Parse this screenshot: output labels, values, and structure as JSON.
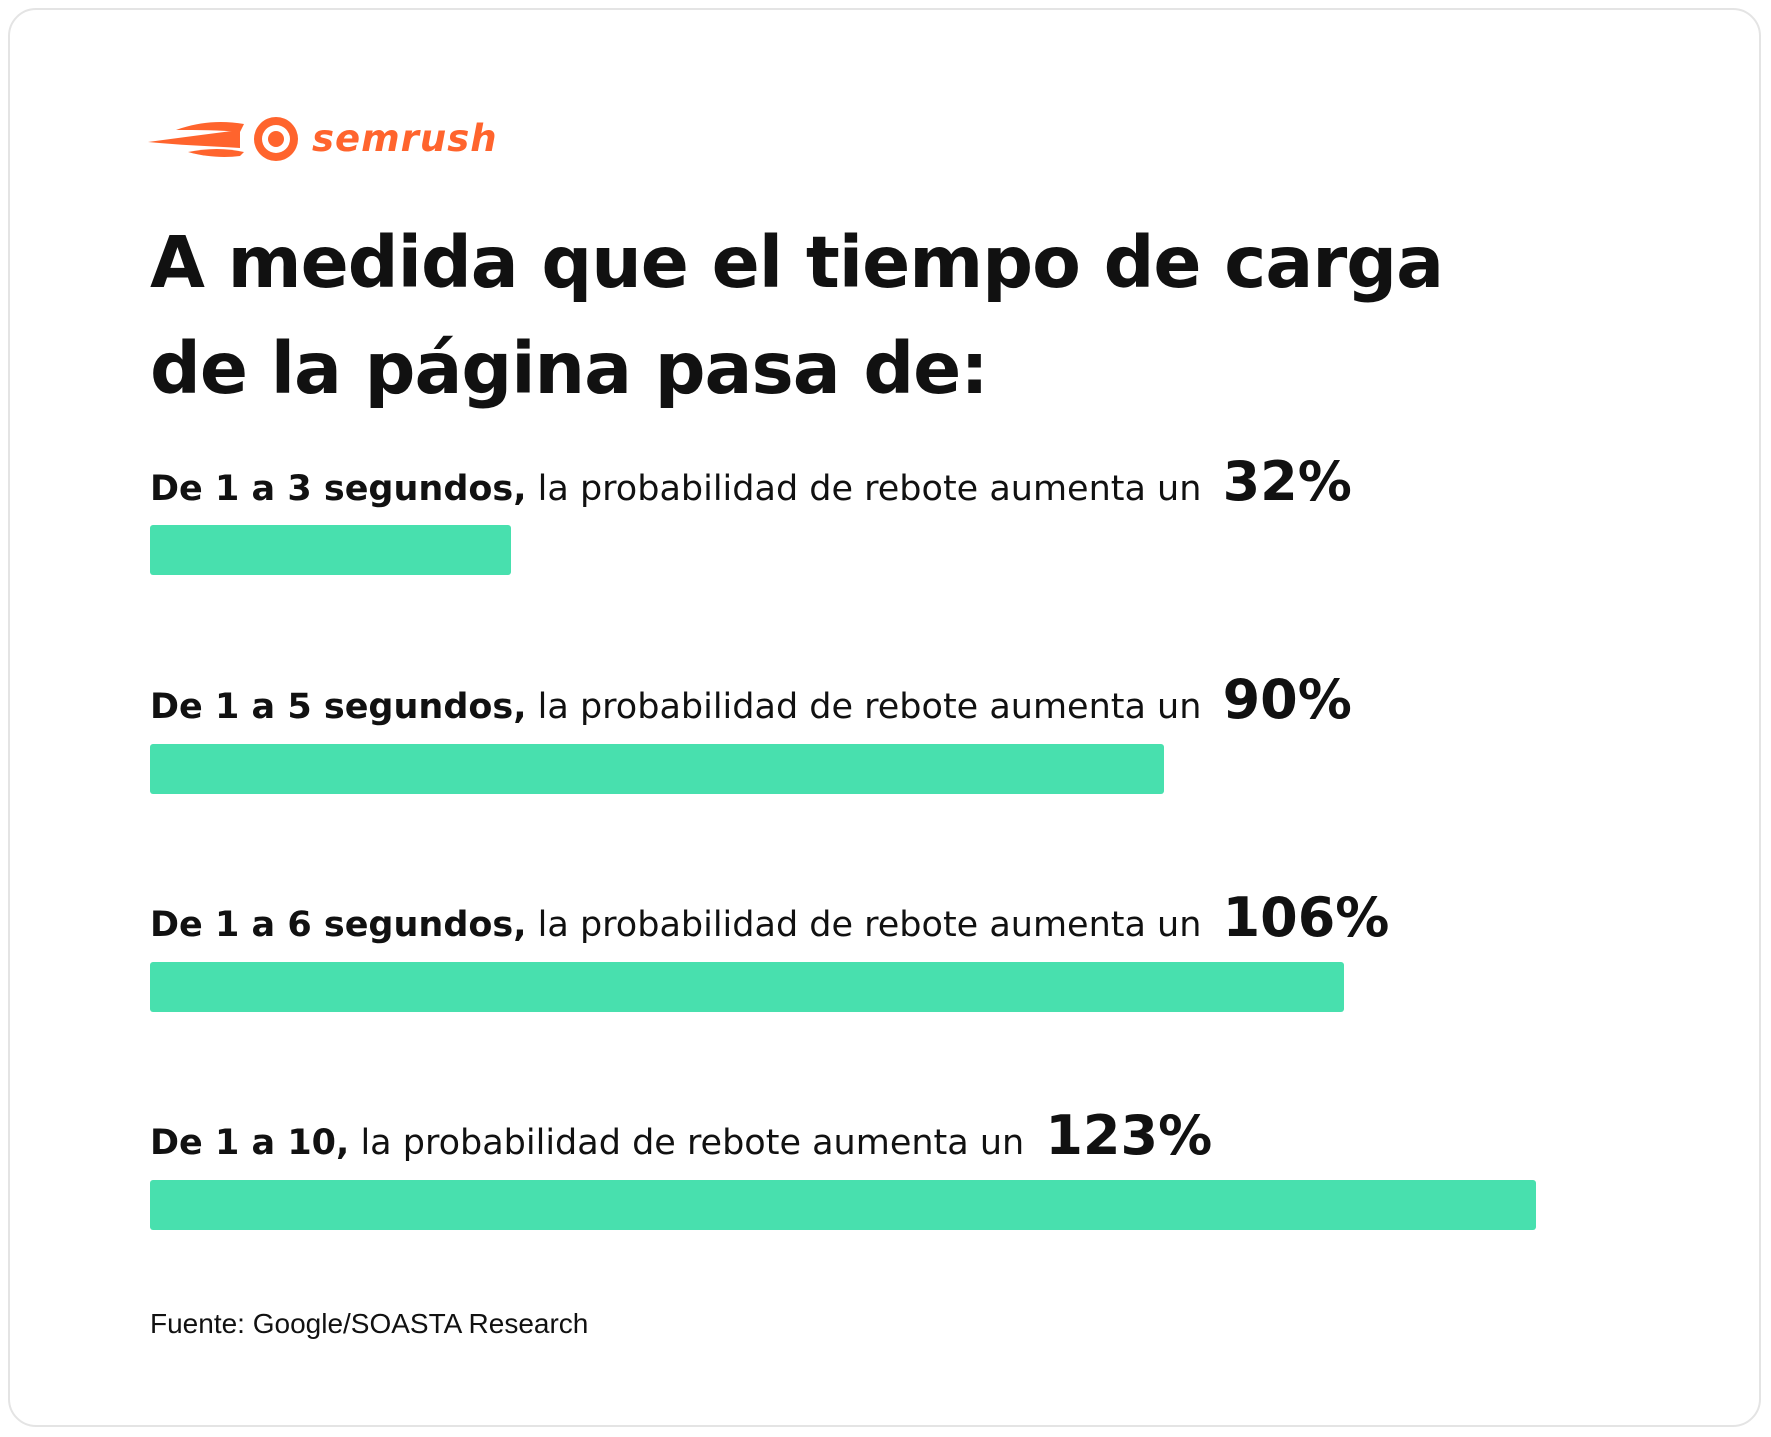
{
  "brand": {
    "name": "semrush",
    "logo_icon": "semrush-fireball-icon",
    "color": "#FF642D"
  },
  "bar_color": "#48E0AE",
  "chart_data": {
    "type": "bar",
    "orientation": "horizontal",
    "title": [
      "A medida que el tiempo de carga",
      "de la página pasa de:"
    ],
    "categories": [
      "De 1 a 3 segundos",
      "De 1 a 5 segundos",
      "De 1 a 6 segundos",
      "De 1 a 10"
    ],
    "values": [
      32,
      90,
      106,
      123
    ],
    "unit": "%",
    "rows": [
      {
        "lead": "De 1 a 3 segundos,",
        "text": " la probabilidad de rebote aumenta un ",
        "value_label": "32%",
        "value": 32
      },
      {
        "lead": "De 1 a 5 segundos,",
        "text": " la probabilidad de rebote aumenta un ",
        "value_label": "90%",
        "value": 90
      },
      {
        "lead": "De 1 a 6 segundos,",
        "text": " la probabilidad de rebote aumenta un ",
        "value_label": "106%",
        "value": 106
      },
      {
        "lead": "De 1 a 10,",
        "text": " la probabilidad de rebote aumenta un ",
        "value_label": "123%",
        "value": 123
      }
    ],
    "source": "Fuente: Google/SOASTA Research"
  }
}
